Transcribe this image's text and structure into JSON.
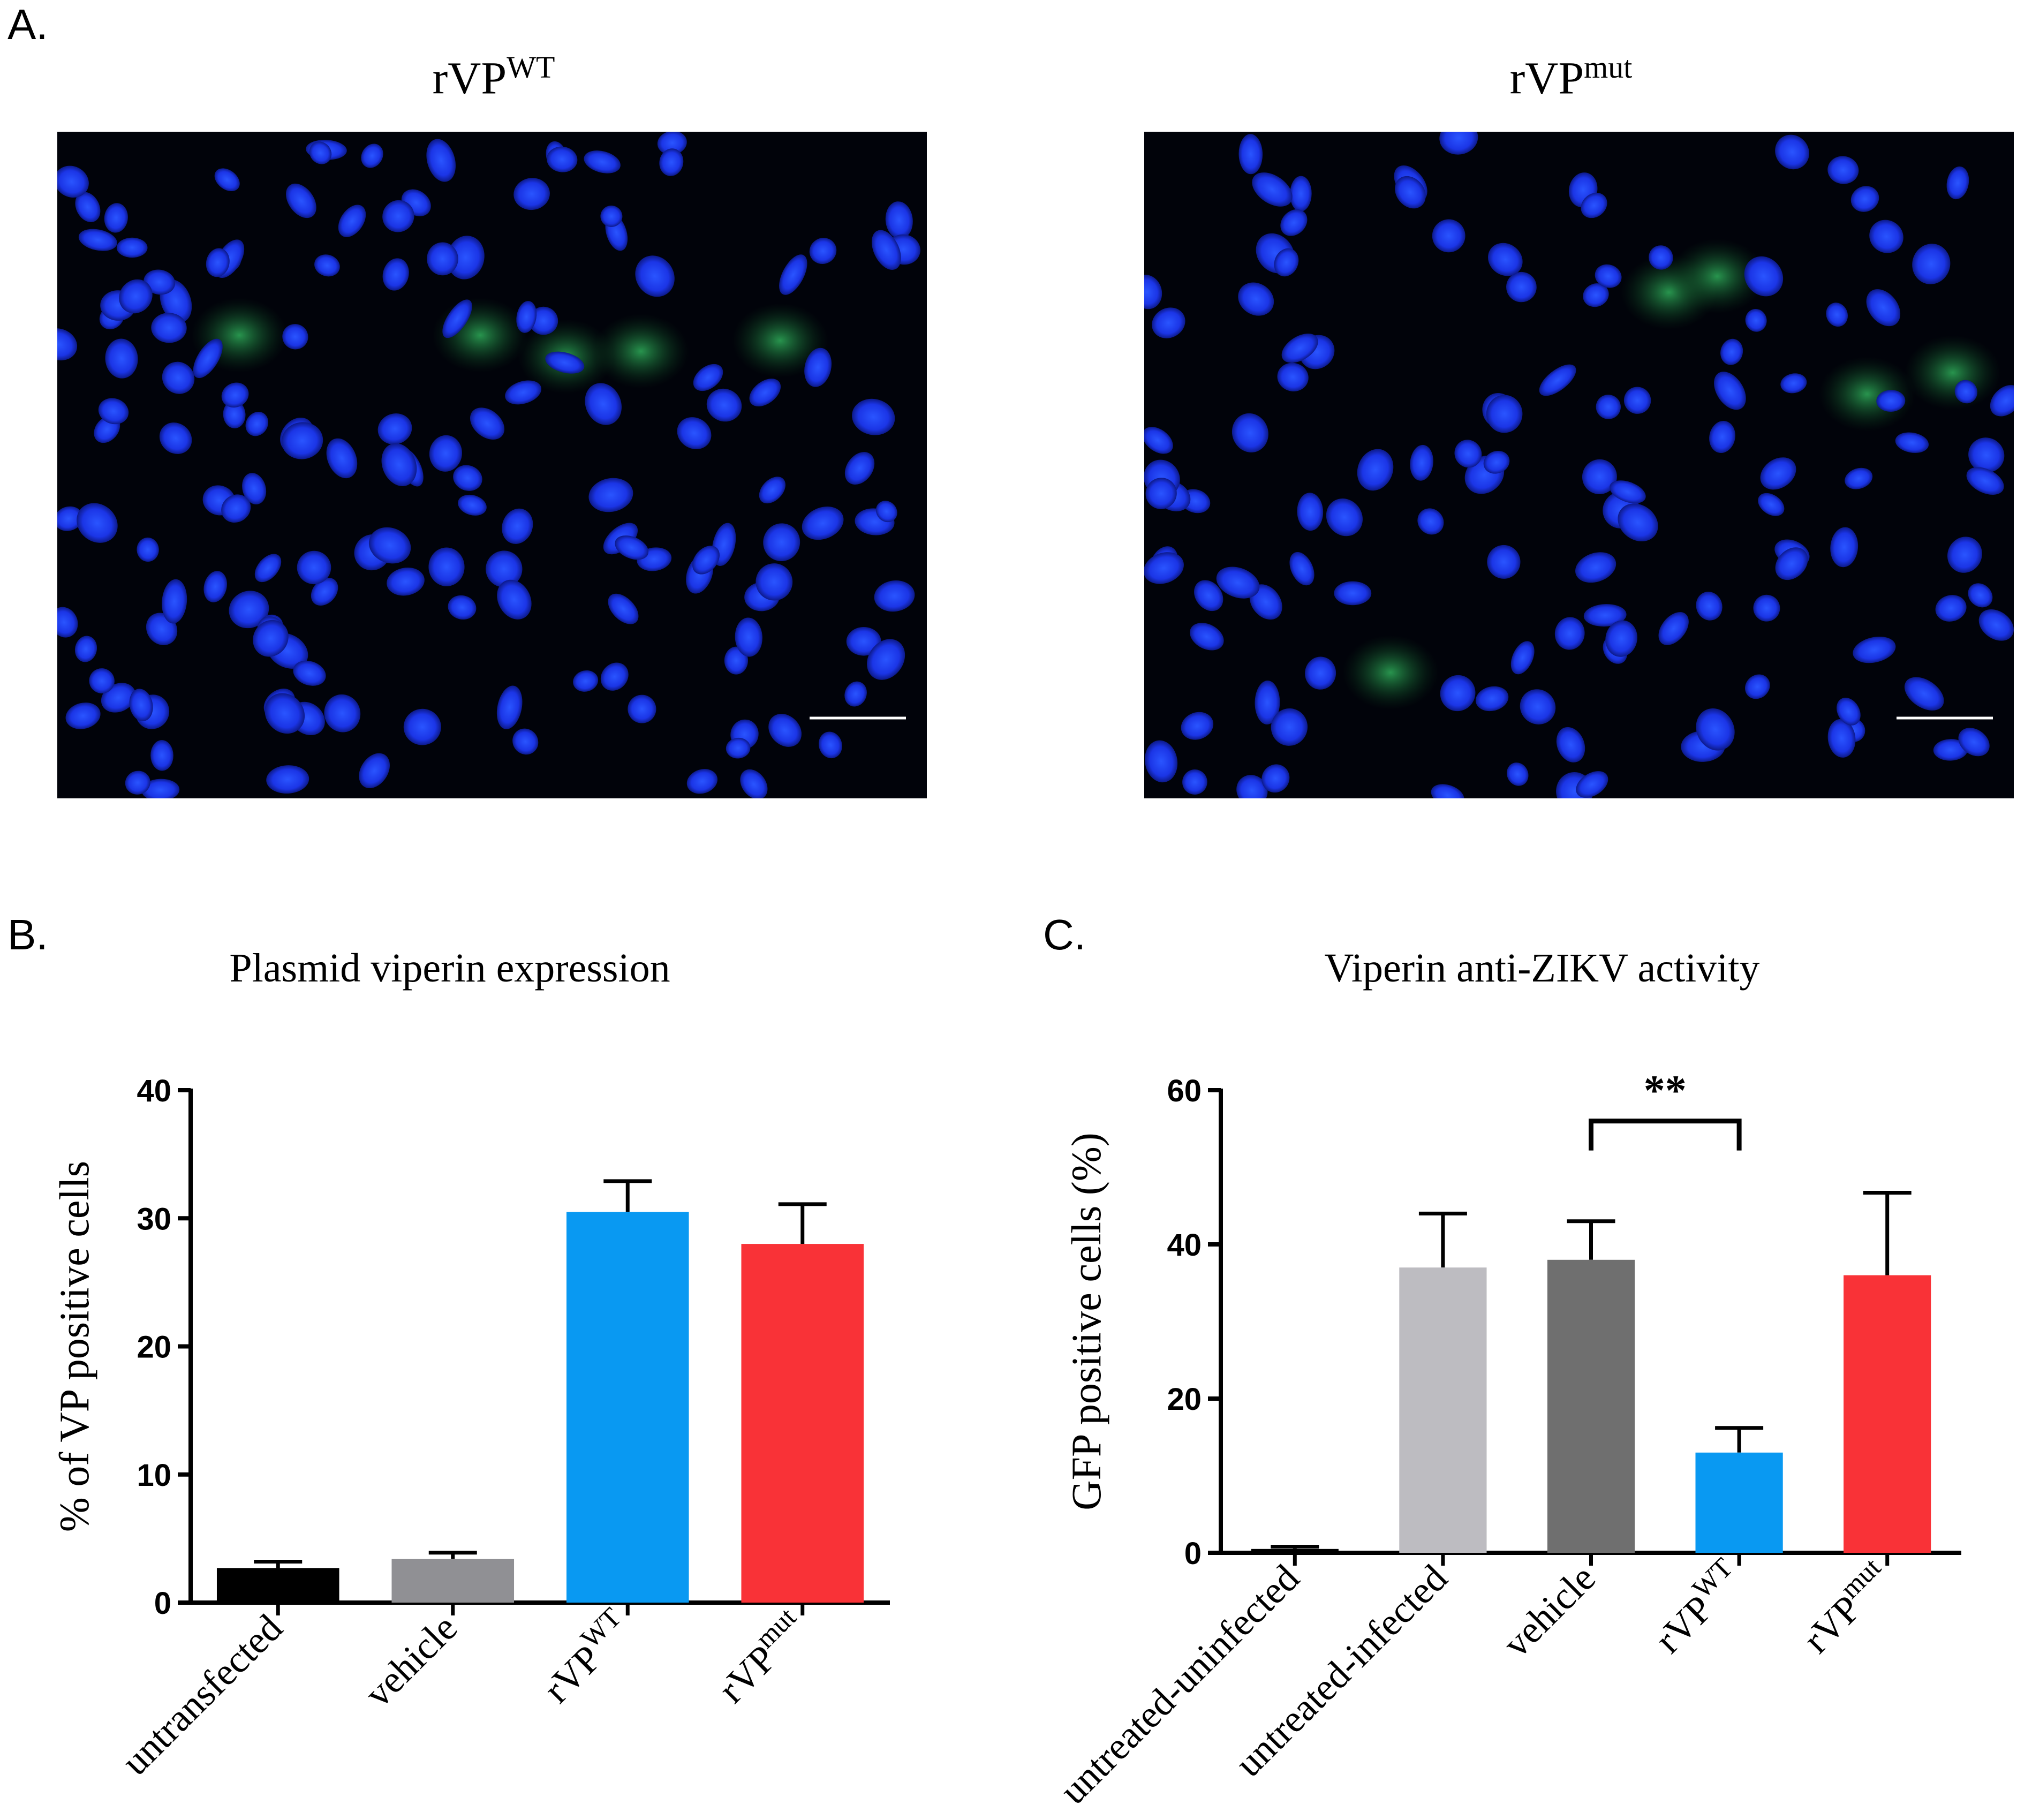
{
  "panels": {
    "a_label": "A.",
    "b_label": "B.",
    "c_label": "C."
  },
  "micrographs": [
    {
      "title": "rVP",
      "title_sup": "WT"
    },
    {
      "title": "rVP",
      "title_sup": "mut"
    }
  ],
  "chart_data": [
    {
      "type": "bar",
      "title": "Plasmid viperin expression",
      "ylabel": "% of VP positive cells",
      "xlabel": "",
      "ylim": [
        0,
        40
      ],
      "yticks": [
        0,
        10,
        20,
        30,
        40
      ],
      "categories": [
        {
          "base": "untransfected",
          "sup": ""
        },
        {
          "base": "vehicle",
          "sup": ""
        },
        {
          "base": "rVP",
          "sup": "WT"
        },
        {
          "base": "rVP",
          "sup": "mut"
        }
      ],
      "values": [
        2.7,
        3.4,
        30.5,
        28.0
      ],
      "errors": [
        0.5,
        0.5,
        2.4,
        3.1
      ],
      "colors": [
        "#000000",
        "#909094",
        "#0999f2",
        "#f93237"
      ],
      "annotations": []
    },
    {
      "type": "bar",
      "title": "Viperin anti-ZIKV activity",
      "ylabel": "GFP positive cells (%)",
      "xlabel": "",
      "ylim": [
        0,
        60
      ],
      "yticks": [
        0,
        20,
        40,
        60
      ],
      "categories": [
        {
          "base": "untreated-uninfected",
          "sup": ""
        },
        {
          "base": "untreated-infected",
          "sup": ""
        },
        {
          "base": "vehicle",
          "sup": ""
        },
        {
          "base": "rVP",
          "sup": "WT"
        },
        {
          "base": "rVP",
          "sup": "mut"
        }
      ],
      "values": [
        0.5,
        37.0,
        38.0,
        13.0,
        36.0
      ],
      "errors": [
        0.3,
        7.0,
        5.0,
        3.2,
        10.7
      ],
      "colors": [
        "#000000",
        "#bdbcc1",
        "#6f6f6f",
        "#0999f2",
        "#f93237"
      ],
      "significance": {
        "from": 2,
        "to": 3,
        "label": "**",
        "y": 56
      }
    }
  ]
}
